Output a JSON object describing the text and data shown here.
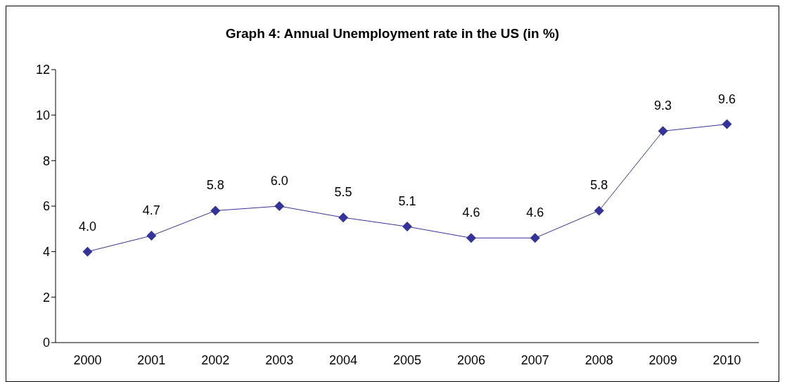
{
  "chart_data": {
    "type": "line",
    "title": "Graph 4: Annual Unemployment rate in the US (in %)",
    "categories": [
      "2000",
      "2001",
      "2002",
      "2003",
      "2004",
      "2005",
      "2006",
      "2007",
      "2008",
      "2009",
      "2010"
    ],
    "series": [
      {
        "color": "#333399",
        "values": [
          4.0,
          4.7,
          5.8,
          6.0,
          5.5,
          5.1,
          4.6,
          4.6,
          5.8,
          9.3,
          9.6
        ],
        "value_labels": [
          "4.0",
          "4.7",
          "5.8",
          "6.0",
          "5.5",
          "5.1",
          "4.6",
          "4.6",
          "5.8",
          "9.3",
          "9.6"
        ]
      }
    ],
    "ylim": [
      0,
      12
    ],
    "yticks": [
      0,
      2,
      4,
      6,
      8,
      10,
      12
    ],
    "grid": false,
    "legend": false,
    "marker": "diamond",
    "line_style": "solid"
  }
}
